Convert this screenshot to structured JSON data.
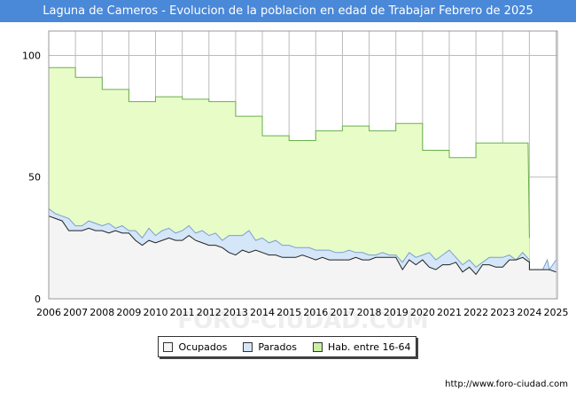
{
  "title": "Laguna de Cameros - Evolucion de la poblacion en edad de Trabajar Febrero de 2025",
  "footer_url": "http://www.foro-ciudad.com",
  "watermark": "FORO-CIUDAD.COM",
  "colors": {
    "header": "#4a88d8",
    "hab": "#e8fcc8",
    "hab_line": "#6ab04c",
    "parados": "#d4e6f8",
    "parados_line": "#7aa0d0",
    "ocupados": "#f4f4f4",
    "ocupados_line": "#222222",
    "grid": "#bbbbbb"
  },
  "chart_data": {
    "type": "area",
    "xlabel": "",
    "ylabel": "",
    "xlim": [
      2006,
      2025.05
    ],
    "ylim": [
      0,
      110
    ],
    "yticks": [
      0,
      50,
      100
    ],
    "xticks": [
      2006,
      2007,
      2008,
      2009,
      2010,
      2011,
      2012,
      2013,
      2014,
      2015,
      2016,
      2017,
      2018,
      2019,
      2020,
      2021,
      2022,
      2023,
      2024,
      2025
    ],
    "grid": true,
    "legend_position": "bottom",
    "legend": [
      "Ocupados",
      "Parados",
      "Hab. entre 16-64"
    ],
    "series": [
      {
        "name": "Hab. entre 16-64",
        "points": [
          [
            2006.0,
            95
          ],
          [
            2007.0,
            95
          ],
          [
            2007.0,
            91
          ],
          [
            2008.0,
            91
          ],
          [
            2008.0,
            86
          ],
          [
            2009.0,
            86
          ],
          [
            2009.0,
            81
          ],
          [
            2010.0,
            81
          ],
          [
            2010.0,
            83
          ],
          [
            2011.0,
            83
          ],
          [
            2011.0,
            82
          ],
          [
            2012.0,
            82
          ],
          [
            2012.0,
            81
          ],
          [
            2013.0,
            81
          ],
          [
            2013.0,
            75
          ],
          [
            2014.0,
            75
          ],
          [
            2014.0,
            67
          ],
          [
            2015.0,
            67
          ],
          [
            2015.0,
            65
          ],
          [
            2016.0,
            65
          ],
          [
            2016.0,
            69
          ],
          [
            2017.0,
            69
          ],
          [
            2017.0,
            71
          ],
          [
            2018.0,
            71
          ],
          [
            2018.0,
            69
          ],
          [
            2019.0,
            69
          ],
          [
            2019.0,
            72
          ],
          [
            2020.0,
            72
          ],
          [
            2020.0,
            61
          ],
          [
            2021.0,
            61
          ],
          [
            2021.0,
            58
          ],
          [
            2022.0,
            58
          ],
          [
            2022.0,
            64
          ],
          [
            2023.0,
            64
          ],
          [
            2023.0,
            64
          ],
          [
            2023.95,
            64
          ],
          [
            2024.0,
            25
          ]
        ]
      },
      {
        "name": "Parados",
        "points": [
          [
            2006.0,
            37
          ],
          [
            2006.25,
            35
          ],
          [
            2006.5,
            34
          ],
          [
            2006.75,
            33
          ],
          [
            2007.0,
            30
          ],
          [
            2007.25,
            30
          ],
          [
            2007.5,
            32
          ],
          [
            2007.75,
            31
          ],
          [
            2008.0,
            30
          ],
          [
            2008.25,
            31
          ],
          [
            2008.5,
            29
          ],
          [
            2008.75,
            30
          ],
          [
            2009.0,
            28
          ],
          [
            2009.25,
            28
          ],
          [
            2009.5,
            25
          ],
          [
            2009.75,
            29
          ],
          [
            2010.0,
            26
          ],
          [
            2010.25,
            28
          ],
          [
            2010.5,
            29
          ],
          [
            2010.75,
            27
          ],
          [
            2011.0,
            28
          ],
          [
            2011.25,
            30
          ],
          [
            2011.5,
            27
          ],
          [
            2011.75,
            28
          ],
          [
            2012.0,
            26
          ],
          [
            2012.25,
            27
          ],
          [
            2012.5,
            24
          ],
          [
            2012.75,
            26
          ],
          [
            2013.0,
            26
          ],
          [
            2013.25,
            26
          ],
          [
            2013.5,
            28
          ],
          [
            2013.75,
            24
          ],
          [
            2014.0,
            25
          ],
          [
            2014.25,
            23
          ],
          [
            2014.5,
            24
          ],
          [
            2014.75,
            22
          ],
          [
            2015.0,
            22
          ],
          [
            2015.25,
            21
          ],
          [
            2015.5,
            21
          ],
          [
            2015.75,
            21
          ],
          [
            2016.0,
            20
          ],
          [
            2016.25,
            20
          ],
          [
            2016.5,
            20
          ],
          [
            2016.75,
            19
          ],
          [
            2017.0,
            19
          ],
          [
            2017.25,
            20
          ],
          [
            2017.5,
            19
          ],
          [
            2017.75,
            19
          ],
          [
            2018.0,
            18
          ],
          [
            2018.25,
            18
          ],
          [
            2018.5,
            19
          ],
          [
            2018.75,
            18
          ],
          [
            2019.0,
            18
          ],
          [
            2019.25,
            15
          ],
          [
            2019.5,
            19
          ],
          [
            2019.75,
            17
          ],
          [
            2020.0,
            18
          ],
          [
            2020.25,
            19
          ],
          [
            2020.5,
            16
          ],
          [
            2020.75,
            18
          ],
          [
            2021.0,
            20
          ],
          [
            2021.25,
            17
          ],
          [
            2021.5,
            14
          ],
          [
            2021.75,
            16
          ],
          [
            2022.0,
            13
          ],
          [
            2022.25,
            15
          ],
          [
            2022.5,
            17
          ],
          [
            2022.75,
            17
          ],
          [
            2023.0,
            17
          ],
          [
            2023.25,
            18
          ],
          [
            2023.5,
            16
          ],
          [
            2023.75,
            19
          ],
          [
            2024.0,
            16
          ],
          [
            2024.0,
            12
          ],
          [
            2024.5,
            12
          ],
          [
            2024.67,
            16
          ],
          [
            2024.75,
            12
          ],
          [
            2025.0,
            16
          ]
        ]
      },
      {
        "name": "Ocupados",
        "points": [
          [
            2006.0,
            34
          ],
          [
            2006.25,
            33
          ],
          [
            2006.5,
            32
          ],
          [
            2006.75,
            28
          ],
          [
            2007.0,
            28
          ],
          [
            2007.25,
            28
          ],
          [
            2007.5,
            29
          ],
          [
            2007.75,
            28
          ],
          [
            2008.0,
            28
          ],
          [
            2008.25,
            27
          ],
          [
            2008.5,
            28
          ],
          [
            2008.75,
            27
          ],
          [
            2009.0,
            27
          ],
          [
            2009.25,
            24
          ],
          [
            2009.5,
            22
          ],
          [
            2009.75,
            24
          ],
          [
            2010.0,
            23
          ],
          [
            2010.25,
            24
          ],
          [
            2010.5,
            25
          ],
          [
            2010.75,
            24
          ],
          [
            2011.0,
            24
          ],
          [
            2011.25,
            26
          ],
          [
            2011.5,
            24
          ],
          [
            2011.75,
            23
          ],
          [
            2012.0,
            22
          ],
          [
            2012.25,
            22
          ],
          [
            2012.5,
            21
          ],
          [
            2012.75,
            19
          ],
          [
            2013.0,
            18
          ],
          [
            2013.25,
            20
          ],
          [
            2013.5,
            19
          ],
          [
            2013.75,
            20
          ],
          [
            2014.0,
            19
          ],
          [
            2014.25,
            18
          ],
          [
            2014.5,
            18
          ],
          [
            2014.75,
            17
          ],
          [
            2015.0,
            17
          ],
          [
            2015.25,
            17
          ],
          [
            2015.5,
            18
          ],
          [
            2015.75,
            17
          ],
          [
            2016.0,
            16
          ],
          [
            2016.25,
            17
          ],
          [
            2016.5,
            16
          ],
          [
            2016.75,
            16
          ],
          [
            2017.0,
            16
          ],
          [
            2017.25,
            16
          ],
          [
            2017.5,
            17
          ],
          [
            2017.75,
            16
          ],
          [
            2018.0,
            16
          ],
          [
            2018.25,
            17
          ],
          [
            2018.5,
            17
          ],
          [
            2018.75,
            17
          ],
          [
            2019.0,
            17
          ],
          [
            2019.25,
            12
          ],
          [
            2019.5,
            16
          ],
          [
            2019.75,
            14
          ],
          [
            2020.0,
            16
          ],
          [
            2020.25,
            13
          ],
          [
            2020.5,
            12
          ],
          [
            2020.75,
            14
          ],
          [
            2021.0,
            14
          ],
          [
            2021.25,
            15
          ],
          [
            2021.5,
            11
          ],
          [
            2021.75,
            13
          ],
          [
            2022.0,
            10
          ],
          [
            2022.25,
            14
          ],
          [
            2022.5,
            14
          ],
          [
            2022.75,
            13
          ],
          [
            2023.0,
            13
          ],
          [
            2023.25,
            16
          ],
          [
            2023.5,
            16
          ],
          [
            2023.75,
            17
          ],
          [
            2024.0,
            15
          ],
          [
            2024.0,
            12
          ],
          [
            2024.5,
            12
          ],
          [
            2024.67,
            12
          ],
          [
            2024.75,
            12
          ],
          [
            2025.0,
            11
          ]
        ]
      }
    ]
  }
}
